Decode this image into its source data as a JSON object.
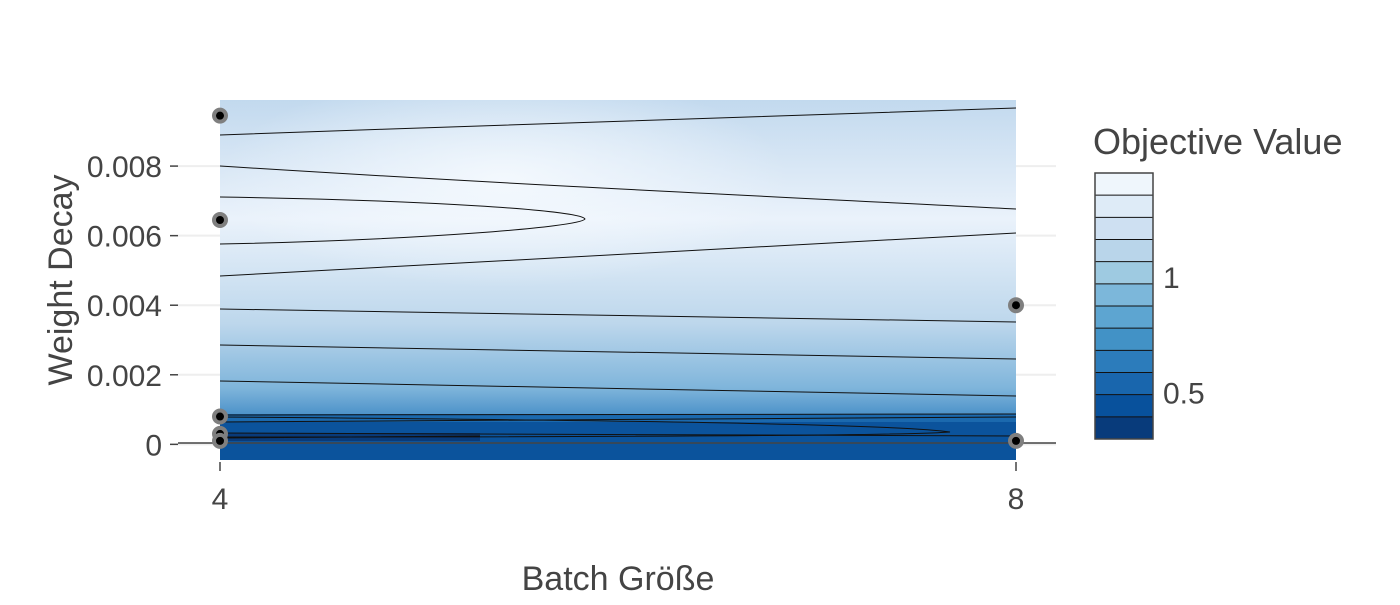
{
  "chart_data": {
    "type": "contour",
    "title": "",
    "xlabel": "Batch Größe",
    "ylabel": "Weight Decay",
    "x_ticks": [
      {
        "value": 4,
        "label": "4"
      },
      {
        "value": 8,
        "label": "8"
      }
    ],
    "y_ticks": [
      {
        "value": 0,
        "label": "0"
      },
      {
        "value": 0.002,
        "label": "0.002"
      },
      {
        "value": 0.004,
        "label": "0.004"
      },
      {
        "value": 0.006,
        "label": "0.006"
      },
      {
        "value": 0.008,
        "label": "0.008"
      }
    ],
    "xlim": [
      4,
      8
    ],
    "ylim": [
      -0.00045,
      0.0099
    ],
    "grid": true,
    "colorbar": {
      "title": "Objective Value",
      "range": [
        0.3,
        1.45
      ],
      "ticks": [
        {
          "value": 0.5,
          "label": "0.5"
        },
        {
          "value": 1,
          "label": "1"
        }
      ],
      "colorscale": "Blues",
      "levels": 12
    },
    "points": [
      {
        "x": 4,
        "y": 0.00945
      },
      {
        "x": 4,
        "y": 0.00645
      },
      {
        "x": 4,
        "y": 0.0008
      },
      {
        "x": 4,
        "y": 0.0003
      },
      {
        "x": 4,
        "y": 0.0001
      },
      {
        "x": 8,
        "y": 0.004
      },
      {
        "x": 8,
        "y": 0.0001
      }
    ]
  }
}
